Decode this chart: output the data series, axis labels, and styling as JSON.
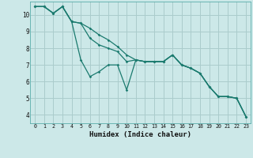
{
  "title": "",
  "xlabel": "Humidex (Indice chaleur)",
  "bg_color": "#cce8e8",
  "grid_color": "#aacccc",
  "line_color": "#1a7a6e",
  "x_values": [
    0,
    1,
    2,
    3,
    4,
    5,
    6,
    7,
    8,
    9,
    10,
    11,
    12,
    13,
    14,
    15,
    16,
    17,
    18,
    19,
    20,
    21,
    22,
    23
  ],
  "line1": [
    10.5,
    10.5,
    10.1,
    10.5,
    9.6,
    7.3,
    6.3,
    6.6,
    7.0,
    7.0,
    5.5,
    7.3,
    7.2,
    7.2,
    7.2,
    7.6,
    7.0,
    6.8,
    6.5,
    5.7,
    5.1,
    5.1,
    5.0,
    3.9
  ],
  "line2": [
    10.5,
    10.5,
    10.1,
    10.5,
    9.6,
    9.5,
    8.6,
    8.2,
    8.0,
    7.8,
    7.2,
    7.3,
    7.2,
    7.2,
    7.2,
    7.6,
    7.0,
    6.8,
    6.5,
    5.7,
    5.1,
    5.1,
    5.0,
    3.9
  ],
  "line3": [
    10.5,
    10.5,
    10.1,
    10.5,
    9.6,
    9.5,
    9.2,
    8.8,
    8.5,
    8.1,
    7.6,
    7.3,
    7.2,
    7.2,
    7.2,
    7.6,
    7.0,
    6.8,
    6.5,
    5.7,
    5.1,
    5.1,
    5.0,
    3.9
  ],
  "ylim": [
    3.5,
    10.8
  ],
  "xlim": [
    -0.5,
    23.5
  ],
  "yticks": [
    4,
    5,
    6,
    7,
    8,
    9,
    10
  ],
  "xticks": [
    0,
    1,
    2,
    3,
    4,
    5,
    6,
    7,
    8,
    9,
    10,
    11,
    12,
    13,
    14,
    15,
    16,
    17,
    18,
    19,
    20,
    21,
    22,
    23
  ]
}
